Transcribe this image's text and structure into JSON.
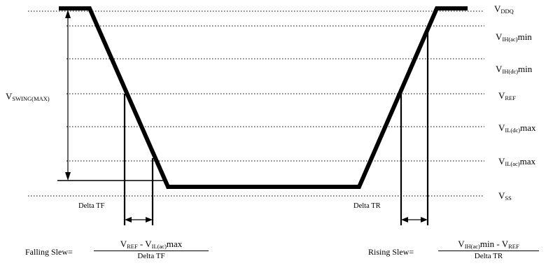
{
  "levels": {
    "vddq": {
      "v": "V",
      "sub": "DDQ",
      "suffix": ""
    },
    "vih_ac": {
      "v": "V",
      "sub": "IH(ac)",
      "suffix": "min"
    },
    "vih_dc": {
      "v": "V",
      "sub": "IH(dc)",
      "suffix": "min"
    },
    "vref": {
      "v": "V",
      "sub": "REF",
      "suffix": ""
    },
    "vil_dc": {
      "v": "V",
      "sub": "IL(dc)",
      "suffix": "max"
    },
    "vil_ac": {
      "v": "V",
      "sub": "IL(ac)",
      "suffix": "max"
    },
    "vss": {
      "v": "V",
      "sub": "SS",
      "suffix": ""
    }
  },
  "swing": {
    "v": "V",
    "sub": "SWING(MAX)"
  },
  "delta_tf": "Delta TF",
  "delta_tr": "Delta TR",
  "falling": {
    "label": "Falling Slew=",
    "num_a_v": "V",
    "num_a_sub": "REF",
    "num_mid": " - ",
    "num_b_v": "V",
    "num_b_sub": "IL(ac)",
    "num_b_suffix": "max",
    "den": "Delta TF"
  },
  "rising": {
    "label": "Rising Slew=",
    "num_a_v": "V",
    "num_a_sub": "IH(ac)",
    "num_a_suffix": "min",
    "num_mid": " - ",
    "num_b_v": "V",
    "num_b_sub": "REF",
    "den": "Delta TR"
  },
  "colors": {
    "ink": "#000000"
  }
}
